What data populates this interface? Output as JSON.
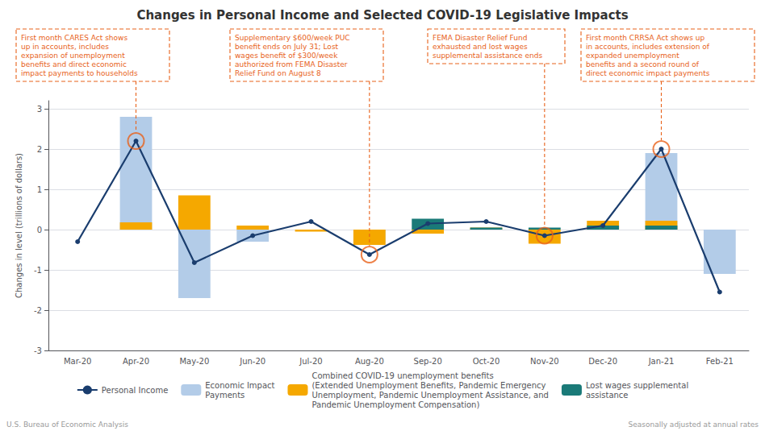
{
  "chart_data": {
    "type": "bar",
    "title": "Changes in Personal Income and Selected COVID-19 Legislative Impacts",
    "y_label": "Changes in level (trillions of dollars)",
    "categories": [
      "Mar-20",
      "Apr-20",
      "May-20",
      "Jun-20",
      "Jul-20",
      "Aug-20",
      "Sep-20",
      "Oct-20",
      "Nov-20",
      "Dec-20",
      "Jan-21",
      "Feb-21"
    ],
    "series": [
      {
        "name": "Personal Income",
        "type": "line",
        "color": "#1a3d6e",
        "marker": "circle",
        "values": [
          -0.3,
          2.2,
          -0.82,
          -0.15,
          0.2,
          -0.62,
          0.15,
          0.2,
          -0.15,
          0.1,
          2.0,
          -1.55
        ]
      },
      {
        "name": "Economic Impact\nPayments",
        "type": "bar",
        "color": "#b3cce8",
        "values": [
          0,
          2.8,
          -1.7,
          -0.3,
          0,
          -0.35,
          0,
          0,
          0,
          0,
          1.9,
          -1.1
        ]
      },
      {
        "name": "Combined COVID-19 unemployment benefits\n(Extended Unemployment Benefits, Pandemic Emergency\nUnemployment, Pandemic Unemployment Assistance, and\nPandemic Unemployment Compensation)",
        "type": "bar",
        "color": "#f5a800",
        "values": [
          0,
          0.18,
          0.85,
          0.1,
          -0.05,
          -0.38,
          -0.1,
          0.05,
          -0.35,
          0.22,
          0.22,
          0
        ]
      },
      {
        "name": "Lost wages supplemental\nassistance",
        "type": "bar",
        "color": "#1a7a78",
        "values": [
          0,
          0,
          0,
          0,
          0,
          0,
          0.27,
          0.05,
          0.05,
          0.1,
          0.1,
          0
        ]
      }
    ],
    "annotations": [
      {
        "category": "Apr-20",
        "color": "#e8621a",
        "text": "First month CARES Act shows\nup in accounts, includes\nexpansion of unemployment\nbenefits and direct economic\nimpact payments to households"
      },
      {
        "category": "Aug-20",
        "color": "#e8621a",
        "text": "Supplementary $600/week PUC\nbenefit ends on July 31; Lost\nwages benefit of $300/week\nauthorized from FEMA Disaster\nRelief Fund on August 8"
      },
      {
        "category": "Nov-20",
        "color": "#e8621a",
        "text": "FEMA Disaster Relief Fund\nexhausted and lost wages\nsupplemental assistance ends"
      },
      {
        "category": "Jan-21",
        "color": "#e8621a",
        "text": "First month CRRSA Act shows up\nin accounts, includes extension of\nexpanded unemployment\nbenefits and a second round of\ndirect economic impact payments"
      }
    ],
    "footer_left": "U.S. Bureau of Economic Analysis",
    "footer_right": "Seasonally adjusted at annual rates",
    "ylim": [
      -3.0,
      3.2
    ],
    "yticks": [
      -3,
      -2,
      -1,
      0,
      1,
      2,
      3
    ],
    "grid": true,
    "legend": "bottom"
  }
}
